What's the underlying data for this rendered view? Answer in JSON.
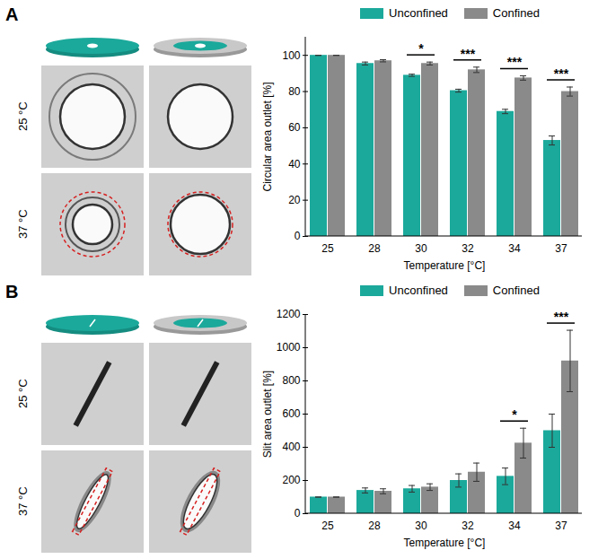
{
  "chart_data": [
    {
      "type": "bar",
      "panel": "A",
      "image_rows": [
        "25 °C",
        "37 °C"
      ],
      "categories": [
        "25",
        "28",
        "30",
        "32",
        "34",
        "37"
      ],
      "x_label": "Temperature [°C]",
      "y_label": "Circular area outlet [%]",
      "series": [
        {
          "name": "Unconfined",
          "color": "#1ba99b",
          "values": [
            100,
            95.5,
            89,
            80.5,
            69,
            53
          ],
          "errors": [
            0,
            0.8,
            0.6,
            0.8,
            1.2,
            2.5
          ]
        },
        {
          "name": "Confined",
          "color": "#8a8a8a",
          "values": [
            100,
            97,
            95.5,
            92,
            87.5,
            80
          ],
          "errors": [
            0,
            0.6,
            0.8,
            1.5,
            1.2,
            2.5
          ]
        }
      ],
      "ylim": [
        0,
        110
      ],
      "yticks": [
        0,
        20,
        40,
        60,
        80,
        100
      ],
      "legend": "top",
      "annotations": [
        {
          "category": "30",
          "text": "*"
        },
        {
          "category": "32",
          "text": "***"
        },
        {
          "category": "34",
          "text": "***"
        },
        {
          "category": "37",
          "text": "***"
        }
      ]
    },
    {
      "type": "bar",
      "panel": "B",
      "image_rows": [
        "25 °C",
        "37 °C"
      ],
      "categories": [
        "25",
        "28",
        "30",
        "32",
        "34",
        "37"
      ],
      "x_label": "Temperature [°C]",
      "y_label": "Slit area outlet [%]",
      "series": [
        {
          "name": "Unconfined",
          "color": "#1ba99b",
          "values": [
            100,
            140,
            150,
            200,
            225,
            500
          ],
          "errors": [
            0,
            15,
            20,
            40,
            50,
            100
          ]
        },
        {
          "name": "Confined",
          "color": "#8a8a8a",
          "values": [
            100,
            135,
            160,
            250,
            425,
            920
          ],
          "errors": [
            0,
            15,
            20,
            55,
            90,
            185
          ]
        }
      ],
      "ylim": [
        0,
        1200
      ],
      "yticks": [
        0,
        200,
        400,
        600,
        800,
        1000,
        1200
      ],
      "legend": "top",
      "annotations": [
        {
          "category": "34",
          "text": "*"
        },
        {
          "category": "37",
          "text": "***"
        }
      ]
    }
  ]
}
